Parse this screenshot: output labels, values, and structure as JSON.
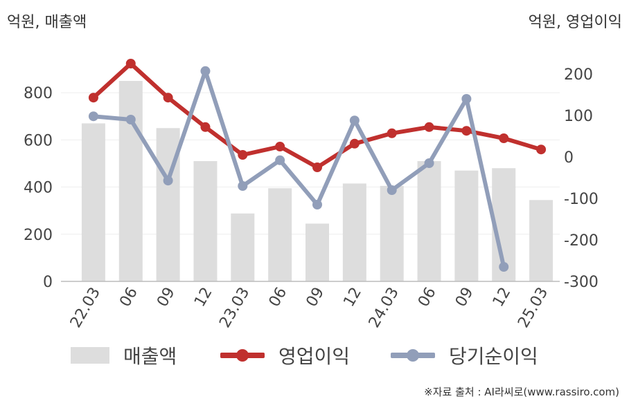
{
  "left_unit": "억원, 매출액",
  "right_unit": "억원, 영업이익",
  "source": "※자료 출처 : AI라씨로(www.rassiro.com)",
  "legend": {
    "revenue": "매출액",
    "operating_profit": "영업이익",
    "net_income": "당기순이익"
  },
  "colors": {
    "revenue": "#dddddd",
    "operating_profit": "#c0302e",
    "net_income": "#919eb9",
    "grid": "#eeeeee",
    "axis": "#bbbbbb",
    "text": "#444444"
  },
  "chart_data": {
    "type": "bar+line",
    "categories": [
      "22.03",
      "06",
      "09",
      "12",
      "23.03",
      "06",
      "09",
      "12",
      "24.03",
      "06",
      "09",
      "12",
      "25.03"
    ],
    "left_axis": {
      "ylim": [
        0,
        900
      ],
      "ticks": [
        0,
        200,
        400,
        600,
        800
      ]
    },
    "right_axis": {
      "ylim": [
        -300,
        260
      ],
      "ticks": [
        -300,
        -200,
        -100,
        0,
        100,
        200
      ]
    },
    "grid": true,
    "legend_position": "bottom",
    "series": [
      {
        "name": "매출액",
        "type": "bar",
        "axis": "left",
        "values": [
          670,
          850,
          650,
          510,
          288,
          395,
          245,
          415,
          405,
          510,
          470,
          480,
          345
        ]
      },
      {
        "name": "영업이익",
        "type": "line",
        "axis": "right",
        "values": [
          143,
          225,
          143,
          72,
          5,
          25,
          -25,
          32,
          57,
          72,
          63,
          45,
          18
        ]
      },
      {
        "name": "당기순이익",
        "type": "line",
        "axis": "right",
        "values": [
          98,
          90,
          -57,
          207,
          -70,
          -8,
          -115,
          88,
          -80,
          -15,
          140,
          -265,
          null
        ]
      }
    ]
  }
}
